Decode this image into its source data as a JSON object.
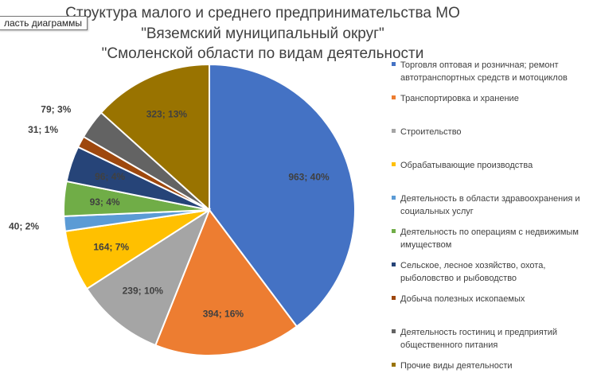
{
  "title_lines": [
    "Структура малого и среднего предпринимательства МО",
    "\"Вяземский муниципальный округ\"",
    "\"Смоленской области по видам деятельности"
  ],
  "tooltip": "ласть диаграммы",
  "chart_data": {
    "type": "pie",
    "start_angle_deg": 0,
    "direction": "clockwise",
    "legend_position": "right",
    "slices": [
      {
        "name": "Торговля оптовая и розничная; ремонт автотранспортных средств и мотоциклов",
        "value": 963,
        "percent": 40,
        "label": "963; 40%",
        "color": "#4472C4"
      },
      {
        "name": "Транспортировка и хранение",
        "value": 394,
        "percent": 16,
        "label": "394; 16%",
        "color": "#ED7D31"
      },
      {
        "name": "Строительство",
        "value": 239,
        "percent": 10,
        "label": "239; 10%",
        "color": "#A5A5A5"
      },
      {
        "name": "Обрабатывающие производства",
        "value": 164,
        "percent": 7,
        "label": "164; 7%",
        "color": "#FFC000"
      },
      {
        "name": "Деятельность в области здравоохранения и социальных услуг",
        "value": 40,
        "percent": 2,
        "label": "40; 2%",
        "color": "#5B9BD5"
      },
      {
        "name": "Деятельность по операциям с недвижимым имуществом",
        "value": 93,
        "percent": 4,
        "label": "93; 4%",
        "color": "#70AD47"
      },
      {
        "name": "Сельское, лесное хозяйство, охота, рыболовство и рыбоводство",
        "value": 96,
        "percent": 4,
        "label": "96; 4%",
        "color": "#264478"
      },
      {
        "name": "Добыча полезных ископаемых",
        "value": 31,
        "percent": 1,
        "label": "31; 1%",
        "color": "#9E480E"
      },
      {
        "name": "Деятельность гостиниц и предприятий общественного питания",
        "value": 79,
        "percent": 3,
        "label": "79; 3%",
        "color": "#636363"
      },
      {
        "name": "Прочие виды деятельности",
        "value": 323,
        "percent": 13,
        "label": "323; 13%",
        "color": "#997300"
      }
    ]
  }
}
